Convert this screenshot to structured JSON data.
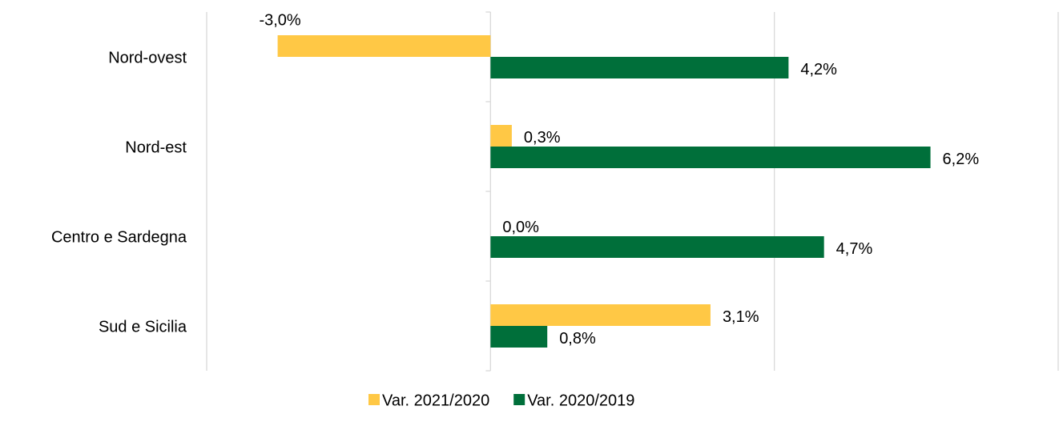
{
  "chart_data": {
    "type": "hbar",
    "categories": [
      "Nord-ovest",
      "Nord-est",
      "Centro e Sardegna",
      "Sud e Sicilia"
    ],
    "series": [
      {
        "name": "Var. 2021/2020",
        "color": "#ffc845",
        "values": [
          -3.0,
          0.3,
          0.0,
          3.1
        ],
        "value_labels": [
          "-3,0%",
          "0,3%",
          "0,0%",
          "3,1%"
        ]
      },
      {
        "name": "Var. 2020/2019",
        "color": "#006f3a",
        "values": [
          4.2,
          6.2,
          4.7,
          0.8
        ],
        "value_labels": [
          "4,2%",
          "6,2%",
          "4,7%",
          "0,8%"
        ]
      }
    ],
    "xlim": [
      -4,
      8
    ],
    "xticks": [
      -4,
      0,
      4,
      8
    ],
    "grid": true,
    "legend": "bottom"
  }
}
